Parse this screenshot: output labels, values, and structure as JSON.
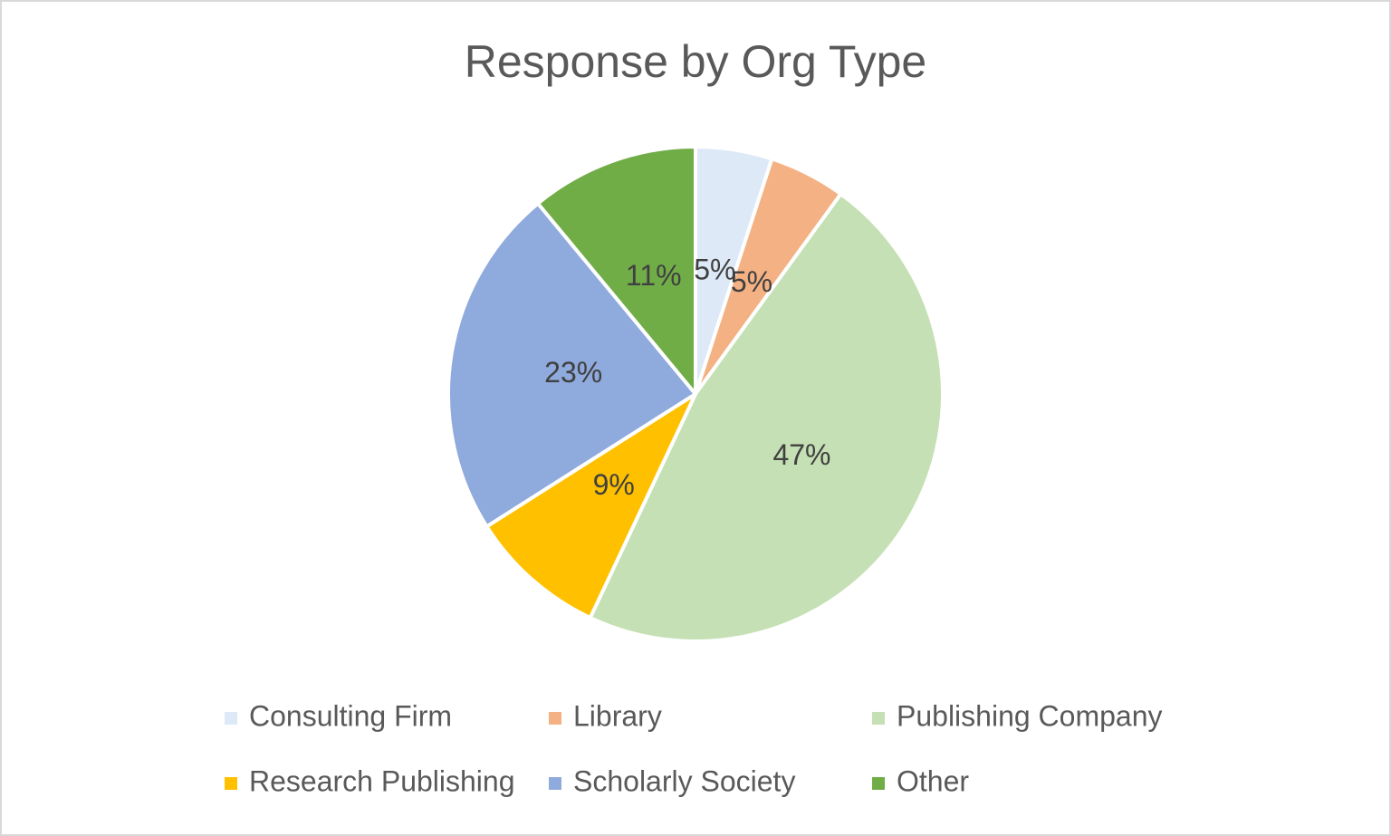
{
  "chart_data": {
    "type": "pie",
    "title": "Response by Org Type",
    "categories": [
      "Consulting Firm",
      "Library",
      "Publishing Company",
      "Research Publishing",
      "Scholarly Society",
      "Other"
    ],
    "values": [
      5,
      5,
      47,
      9,
      23,
      11
    ],
    "value_labels": [
      "5%",
      "5%",
      "47%",
      "9%",
      "23%",
      "11%"
    ],
    "colors": [
      "#dde9f6",
      "#f4b183",
      "#c5e0b4",
      "#ffc000",
      "#8faadc",
      "#70ad47"
    ],
    "legend": "bottom"
  }
}
